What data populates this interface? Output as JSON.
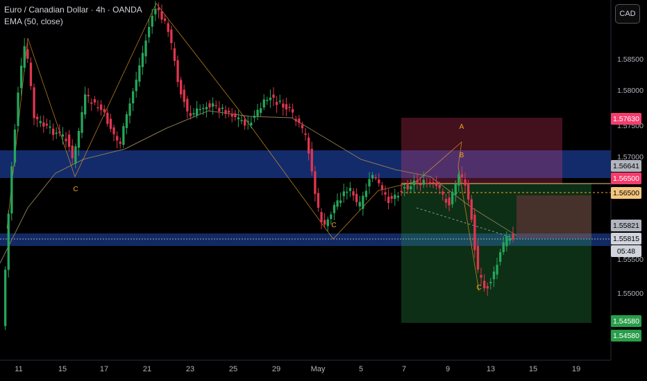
{
  "legend": {
    "title": "Euro / Canadian Dollar · 4h · OANDA",
    "indicator": "EMA (50, close)"
  },
  "toolbar": {
    "currency_label": "CAD"
  },
  "price_axis": {
    "labels": [
      "1.58500",
      "1.58000",
      "1.57500",
      "1.57000",
      "1.55500",
      "1.55000"
    ],
    "tags": [
      {
        "name": "stop-tag",
        "text": "1.57630",
        "bg": "#f23d6d",
        "fg": "#ffffff"
      },
      {
        "name": "level-tag",
        "text": "1.56641",
        "bg": "#b2b5be",
        "fg": "#000000"
      },
      {
        "name": "entry-tag",
        "text": "1.56500",
        "bg": "#f23d6d",
        "fg": "#ffffff"
      },
      {
        "name": "order-tag",
        "text": "1.56500",
        "bg": "#f5c77e",
        "fg": "#000000"
      },
      {
        "name": "ema-tag",
        "text": "1.55821",
        "bg": "#b2b5be",
        "fg": "#000000"
      },
      {
        "name": "last-price-tag",
        "text": "1.55815",
        "bg": "#d1d4dc",
        "fg": "#000000"
      },
      {
        "name": "countdown-tag",
        "text": "05:48",
        "bg": "#d1d4dc",
        "fg": "#000000"
      },
      {
        "name": "target-tag",
        "text": "1.54580",
        "bg": "#2a9d4a",
        "fg": "#ffffff"
      },
      {
        "name": "target-tag-2",
        "text": "1.54580",
        "bg": "#2a9d4a",
        "fg": "#ffffff"
      }
    ]
  },
  "time_axis": {
    "labels": [
      "11",
      "15",
      "17",
      "21",
      "23",
      "25",
      "29",
      "May",
      "5",
      "7",
      "9",
      "13",
      "15",
      "19"
    ]
  },
  "pattern_labels": [
    "C",
    "C",
    "A",
    "B",
    "C"
  ],
  "colors": {
    "up": "#26a65b",
    "down": "#e0364f",
    "zone": "#1a3a8f",
    "pattern": "#f5a623",
    "ema": "#8a7a55"
  },
  "chart_data": {
    "type": "candlestick",
    "symbol": "EURCAD",
    "interval": "4h",
    "y_axis_ticks": [
      1.585,
      1.58,
      1.575,
      1.57,
      1.555,
      1.55
    ],
    "x_axis_ticks": [
      "11",
      "15",
      "17",
      "21",
      "23",
      "25",
      "29",
      "May",
      "5",
      "7",
      "9",
      "13",
      "15",
      "19"
    ],
    "last_price": 1.55815,
    "ema_value": 1.55821,
    "position": {
      "entry": 1.565,
      "stop": 1.5763,
      "target": 1.5458
    },
    "pattern_points": [
      "C",
      "C",
      "A",
      "B",
      "C"
    ]
  }
}
